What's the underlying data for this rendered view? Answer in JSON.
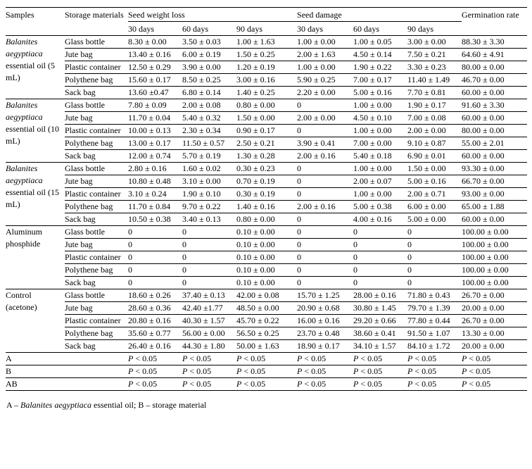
{
  "table": {
    "header": {
      "samples": "Samples",
      "storage_materials": "Storage materials",
      "seed_weight_loss": "Seed weight loss",
      "seed_damage": "Seed damage",
      "germination_rate": "Germination rate",
      "sub_days": [
        "30 days",
        "60 days",
        "90 days",
        "30 days",
        "60 days",
        "90 days"
      ]
    },
    "groups": [
      {
        "sample_italic": "Balanites aegyptiaca",
        "sample_rest": "essential oil (5 mL)",
        "rows": [
          {
            "material": "Glass bottle",
            "values": [
              "8.30 ± 0.00",
              "3.50 ± 0.03",
              "1.00 ± 1.63",
              "1.00 ± 0.00",
              "1.00 ± 0.05",
              "3.00 ± 0.00",
              "88.30 ± 3.30"
            ]
          },
          {
            "material": "Jute bag",
            "values": [
              "13.40 ± 0.16",
              "6.00 ± 0.19",
              "1.50 ± 0.25",
              "2.00 ± 1.63",
              "4.50 ± 0.14",
              "7.50 ± 0.21",
              "64.60 ± 4.91"
            ]
          },
          {
            "material": "Plastic container",
            "values": [
              "12.50 ± 0.29",
              "3.90 ± 0.00",
              "1.20 ± 0.19",
              "1.00 ± 0.00",
              "1.90 ± 0.22",
              "3.30 ± 0.23",
              "80.00 ± 0.00"
            ]
          },
          {
            "material": "Polythene bag",
            "values": [
              "15.60 ± 0.17",
              "8.50 ± 0.25",
              "3.00 ± 0.16",
              "5.90 ± 0.25",
              "7.00 ± 0.17",
              "11.40 ± 1.49",
              "46.70 ± 0.00"
            ]
          },
          {
            "material": "Sack bag",
            "values": [
              "13.60 ±0.47",
              "6.80 ± 0.14",
              "1.40 ± 0.25",
              "2.20 ± 0.00",
              "5.00 ± 0.16",
              "7.70 ± 0.81",
              "60.00 ± 0.00"
            ]
          }
        ]
      },
      {
        "sample_italic": "Balanites aegyptiaca",
        "sample_rest": "essential oil (10 mL)",
        "rows": [
          {
            "material": "Glass bottle",
            "values": [
              "7.80 ± 0.09",
              "2.00 ± 0.08",
              "0.80 ± 0.00",
              "0",
              "1.00 ± 0.00",
              "1.90 ± 0.17",
              "91.60 ± 3.30"
            ]
          },
          {
            "material": "Jute bag",
            "values": [
              "11.70 ± 0.04",
              "5.40 ± 0.32",
              "1.50 ± 0.00",
              "2.00 ± 0.00",
              "4.50 ± 0.10",
              "7.00 ± 0.08",
              "60.00 ± 0.00"
            ]
          },
          {
            "material": "Plastic container",
            "values": [
              "10.00 ± 0.13",
              "2.30 ± 0.34",
              "0.90 ± 0.17",
              "0",
              "1.00 ± 0.00",
              "2.00 ± 0.00",
              "80.00 ± 0.00"
            ]
          },
          {
            "material": "Polythene bag",
            "values": [
              "13.00 ± 0.17",
              "11.50 ± 0.57",
              "2.50 ± 0.21",
              "3.90 ± 0.41",
              "7.00 ± 0.00",
              "9.10 ± 0.87",
              "55.00 ± 2.01"
            ]
          },
          {
            "material": "Sack bag",
            "values": [
              "12.00 ± 0.74",
              "5.70 ± 0.19",
              "1.30 ± 0.28",
              "2.00 ± 0.16",
              "5.40 ± 0.18",
              "6.90 ± 0.01",
              "60.00 ± 0.00"
            ]
          }
        ]
      },
      {
        "sample_italic": "Balanites aegyptiaca",
        "sample_rest": "essential oil (15 mL)",
        "rows": [
          {
            "material": "Glass bottle",
            "values": [
              "2.80 ± 0.16",
              "1.60 ± 0.02",
              "0.30 ± 0.23",
              "0",
              "1.00 ± 0.00",
              "1.50 ± 0.00",
              "93.30 ± 0.00"
            ]
          },
          {
            "material": "Jute bag",
            "values": [
              "10.80 ± 0.48",
              "3.10 ± 0.00",
              "0.70 ± 0.19",
              "0",
              "2.00 ± 0.07",
              "5.00 ± 0.16",
              "66.70 ± 0.00"
            ]
          },
          {
            "material": "Plastic container",
            "values": [
              "3.10 ± 0.24",
              "1.90 ± 0.10",
              "0.30 ± 0.19",
              "0",
              "1.00 ± 0.00",
              "2.00 ± 0.71",
              "93.00 ± 0.00"
            ]
          },
          {
            "material": "Polythene bag",
            "values": [
              "11.70 ± 0.84",
              "9.70 ± 0.22",
              "1.40 ± 0.16",
              "2.00 ± 0.16",
              "5.00 ± 0.38",
              "6.00 ± 0.00",
              "65.00 ± 1.88"
            ]
          },
          {
            "material": "Sack bag",
            "values": [
              "10.50 ± 0.38",
              "3.40 ± 0.13",
              "0.80 ± 0.00",
              "0",
              "4.00 ± 0.16",
              "5.00 ± 0.00",
              "60.00 ± 0.00"
            ]
          }
        ]
      },
      {
        "sample_italic": "",
        "sample_rest": "Aluminum phosphide",
        "rows": [
          {
            "material": "Glass bottle",
            "values": [
              "0",
              "0",
              "0.10 ± 0.00",
              "0",
              "0",
              "0",
              "100.00 ± 0.00"
            ]
          },
          {
            "material": "Jute bag",
            "values": [
              "0",
              "0",
              "0.10 ± 0.00",
              "0",
              "0",
              "0",
              "100.00 ± 0.00"
            ]
          },
          {
            "material": "Plastic container",
            "values": [
              "0",
              "0",
              "0.10 ± 0.00",
              "0",
              "0",
              "0",
              "100.00 ± 0.00"
            ]
          },
          {
            "material": "Polythene bag",
            "values": [
              "0",
              "0",
              "0.10 ± 0.00",
              "0",
              "0",
              "0",
              "100.00 ± 0.00"
            ]
          },
          {
            "material": "Sack bag",
            "values": [
              "0",
              "0",
              "0.10 ± 0.00",
              "0",
              "0",
              "0",
              "100.00 ± 0.00"
            ]
          }
        ]
      },
      {
        "sample_italic": "",
        "sample_rest": "Control (acetone)",
        "rows": [
          {
            "material": "Glass bottle",
            "values": [
              "18.60 ± 0.26",
              "37.40 ± 0.13",
              "42.00 ± 0.08",
              "15.70 ± 1.25",
              "28.00 ± 0.16",
              "71.80 ± 0.43",
              "26.70 ± 0.00"
            ]
          },
          {
            "material": "Jute bag",
            "values": [
              "28.60 ± 0.36",
              "42.40 ±1.77",
              "48.50 ± 0.00",
              "20.90 ± 0.68",
              "30.80 ± 1.45",
              "79.70 ± 1.39",
              "20.00 ± 0.00"
            ]
          },
          {
            "material": "Plastic container",
            "values": [
              "20.80 ± 0.16",
              "40.30 ± 1.57",
              "45.70 ± 0.22",
              "16.00 ± 0.16",
              "29.20 ± 0.66",
              "77.80 ± 0.44",
              "26.70 ± 0.00"
            ]
          },
          {
            "material": "Polythene bag",
            "values": [
              "35.60 ± 0.77",
              "56.00 ± 0.00",
              "56.50 ± 0.25",
              "23.70 ± 0.48",
              "38.60 ± 0.41",
              "91.50 ± 1.07",
              "13.30 ± 0.00"
            ]
          },
          {
            "material": "Sack bag",
            "values": [
              "26.40 ± 0.16",
              "44.30 ± 1.80",
              "50.00 ± 1.63",
              "18.90 ± 0.17",
              "34.10 ± 1.57",
              "84.10 ± 1.72",
              "20.00 ± 0.00"
            ]
          }
        ]
      }
    ],
    "pvalue_rows": [
      {
        "label": "A",
        "values": [
          "P < 0.05",
          "P < 0.05",
          "P < 0.05",
          "P < 0.05",
          "P < 0.05",
          "P < 0.05",
          "P < 0.05"
        ]
      },
      {
        "label": "B",
        "values": [
          "P < 0.05",
          "P < 0.05",
          "P < 0.05",
          "P < 0.05",
          "P < 0.05",
          "P < 0.05",
          "P < 0.05"
        ]
      },
      {
        "label": "AB",
        "values": [
          "P < 0.05",
          "P < 0.05",
          "P < 0.05",
          "P < 0.05",
          "P < 0.05",
          "P < 0.05",
          "P < 0.05"
        ]
      }
    ]
  },
  "footnote": {
    "prefix": "A – ",
    "italic": "Balanites aegyptiaca",
    "rest": " essential oil; B – storage material"
  }
}
